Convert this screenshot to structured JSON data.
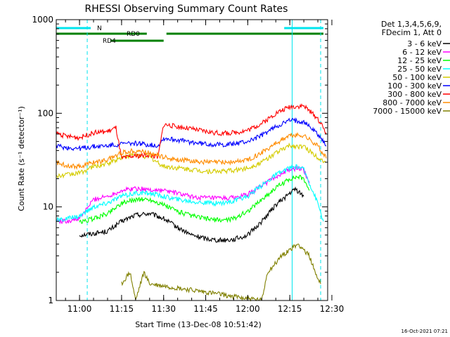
{
  "chart_data": {
    "type": "line",
    "title": "RHESSI Observing Summary Count Rates",
    "xlabel": "Start Time (13-Dec-08 10:51:42)",
    "ylabel": "Count Rate (s⁻¹ detector⁻¹)",
    "y_scale": "log",
    "ylim": [
      1,
      1000
    ],
    "xlim": [
      "10:51:42",
      "12:28:30"
    ],
    "x_ticks": [
      "11:00",
      "11:15",
      "11:30",
      "11:45",
      "12:00",
      "12:15",
      "12:30"
    ],
    "y_ticks": [
      "1",
      "10",
      "100",
      "1000"
    ],
    "legend_position": "right",
    "legend_header": [
      "Det 1,3,4,5,6,9,",
      "FDecim 1, Att 0"
    ],
    "timestamp": "16-Oct-2021 07:21",
    "flags": [
      {
        "name": "N",
        "color": "#00e5ee",
        "intervals": [
          [
            "10:51:42",
            "11:04:00"
          ],
          [
            "12:13:00",
            "12:27:00"
          ]
        ]
      },
      {
        "name": "RD0",
        "color": "#008000",
        "intervals": [
          [
            "10:51:42",
            "11:24:00"
          ],
          [
            "11:31:00",
            "12:27:00"
          ]
        ]
      },
      {
        "name": "RD4",
        "color": "#008000",
        "intervals": [
          [
            "11:11:00",
            "11:30:00"
          ]
        ]
      }
    ],
    "markers": [
      {
        "time": "11:02:45",
        "style": "dashed",
        "color": "#00e5ee"
      },
      {
        "time": "12:15:50",
        "style": "solid",
        "color": "#00e5ee"
      },
      {
        "time": "12:26:00",
        "style": "dashed",
        "color": "#00e5ee"
      }
    ],
    "series": [
      {
        "name": "3 - 6 keV",
        "color": "#000000",
        "x": [
          "11:00",
          "11:05",
          "11:10",
          "11:15",
          "11:20",
          "11:25",
          "11:30",
          "11:35",
          "11:40",
          "11:45",
          "11:50",
          "11:55",
          "12:00",
          "12:05",
          "12:10",
          "12:15",
          "12:17",
          "12:20"
        ],
        "values": [
          5,
          5.2,
          5.5,
          7,
          8.2,
          8.5,
          7.5,
          6,
          5,
          4.6,
          4.4,
          4.5,
          5,
          7,
          10.5,
          14,
          15.5,
          13
        ]
      },
      {
        "name": "6 - 12 keV",
        "color": "#ff00ff",
        "x": [
          "10:51:42",
          "10:55",
          "11:00",
          "11:05",
          "11:10",
          "11:15",
          "11:20",
          "11:25",
          "11:30",
          "11:35",
          "11:40",
          "11:45",
          "11:50",
          "11:55",
          "12:00",
          "12:05",
          "12:10",
          "12:15",
          "12:18",
          "12:20",
          "12:22"
        ],
        "values": [
          7.2,
          7,
          7.5,
          12,
          13,
          15,
          15.8,
          15.2,
          15,
          14,
          12.8,
          12.5,
          12.3,
          12.5,
          13.5,
          17,
          21,
          25,
          26,
          25,
          18
        ]
      },
      {
        "name": "12 - 25 keV",
        "color": "#00ff00",
        "x": [
          "11:00",
          "11:05",
          "11:10",
          "11:15",
          "11:20",
          "11:25",
          "11:30",
          "11:35",
          "11:40",
          "11:45",
          "11:50",
          "11:55",
          "12:00",
          "12:05",
          "12:10",
          "12:15",
          "12:18",
          "12:20",
          "12:22"
        ],
        "values": [
          6.8,
          7.5,
          8.5,
          11,
          12,
          12,
          10.5,
          9,
          8,
          7.5,
          7.2,
          7.5,
          9,
          12,
          16,
          20,
          21,
          20,
          15
        ]
      },
      {
        "name": "25 - 50 keV",
        "color": "#00ffff",
        "x": [
          "10:51:42",
          "10:55",
          "11:00",
          "11:05",
          "11:10",
          "11:15",
          "11:20",
          "11:25",
          "11:30",
          "11:35",
          "11:40",
          "11:45",
          "11:50",
          "11:55",
          "12:00",
          "12:05",
          "12:10",
          "12:15",
          "12:18",
          "12:20",
          "12:25",
          "12:27"
        ],
        "values": [
          7.2,
          7.4,
          8,
          10,
          11,
          13,
          14,
          14,
          13,
          12,
          11.5,
          11,
          11,
          11.5,
          13,
          17,
          22,
          26,
          27,
          25,
          11,
          7
        ]
      },
      {
        "name": "50 - 100 keV",
        "color": "#d4cc00",
        "x": [
          "10:51:42",
          "10:55",
          "11:00",
          "11:05",
          "11:10",
          "11:15",
          "11:20",
          "11:25",
          "11:30",
          "11:35",
          "11:40",
          "11:45",
          "11:50",
          "11:55",
          "12:00",
          "12:05",
          "12:10",
          "12:15",
          "12:20",
          "12:25",
          "12:28"
        ],
        "values": [
          21,
          22,
          23,
          27,
          29,
          34,
          36,
          34,
          27,
          26,
          25,
          24,
          24,
          24.5,
          26,
          30,
          38,
          45,
          44,
          34,
          30
        ]
      },
      {
        "name": "100 - 300 keV",
        "color": "#0000ff",
        "x": [
          "10:51:42",
          "10:55",
          "11:00",
          "11:05",
          "11:10",
          "11:15",
          "11:20",
          "11:25",
          "11:28",
          "11:30",
          "11:35",
          "11:40",
          "11:45",
          "11:50",
          "11:55",
          "12:00",
          "12:05",
          "12:10",
          "12:15",
          "12:20",
          "12:25",
          "12:28"
        ],
        "values": [
          45,
          43,
          42,
          44,
          45,
          47,
          48,
          46,
          45,
          54,
          52,
          49,
          47,
          46,
          47,
          50,
          58,
          72,
          84,
          82,
          60,
          45
        ]
      },
      {
        "name": "300 - 800 keV",
        "color": "#ff0000",
        "x": [
          "10:51:42",
          "10:55",
          "11:00",
          "11:05",
          "11:10",
          "11:13",
          "11:15",
          "11:20",
          "11:25",
          "11:28",
          "11:30",
          "11:35",
          "11:40",
          "11:45",
          "11:50",
          "11:55",
          "12:00",
          "12:05",
          "12:10",
          "12:15",
          "12:20",
          "12:25",
          "12:28"
        ],
        "values": [
          62,
          57,
          55,
          62,
          64,
          70,
          33,
          35,
          36,
          34,
          76,
          72,
          68,
          64,
          61,
          62,
          66,
          78,
          100,
          118,
          120,
          88,
          62
        ]
      },
      {
        "name": "800 - 7000 keV",
        "color": "#ff8c00",
        "x": [
          "10:51:42",
          "10:55",
          "11:00",
          "11:05",
          "11:10",
          "11:15",
          "11:20",
          "11:25",
          "11:30",
          "11:35",
          "11:40",
          "11:45",
          "11:50",
          "11:55",
          "12:00",
          "12:05",
          "12:10",
          "12:15",
          "12:20",
          "12:25",
          "12:28"
        ],
        "values": [
          30,
          28,
          27,
          30,
          32,
          38,
          40,
          38,
          34,
          32,
          31,
          30,
          30,
          30,
          32,
          38,
          48,
          58,
          58,
          45,
          33
        ]
      },
      {
        "name": "7000 - 15000 keV",
        "color": "#808000",
        "x": [
          "11:15",
          "11:18",
          "11:20",
          "11:23",
          "11:25",
          "12:05",
          "12:07",
          "12:10",
          "12:12",
          "12:15",
          "12:18",
          "12:20",
          "12:22",
          "12:24",
          "12:26"
        ],
        "values": [
          1.5,
          2,
          1,
          2,
          1.5,
          1,
          2,
          2.5,
          3,
          3.5,
          4,
          3.5,
          3,
          2,
          1.5
        ]
      }
    ]
  }
}
